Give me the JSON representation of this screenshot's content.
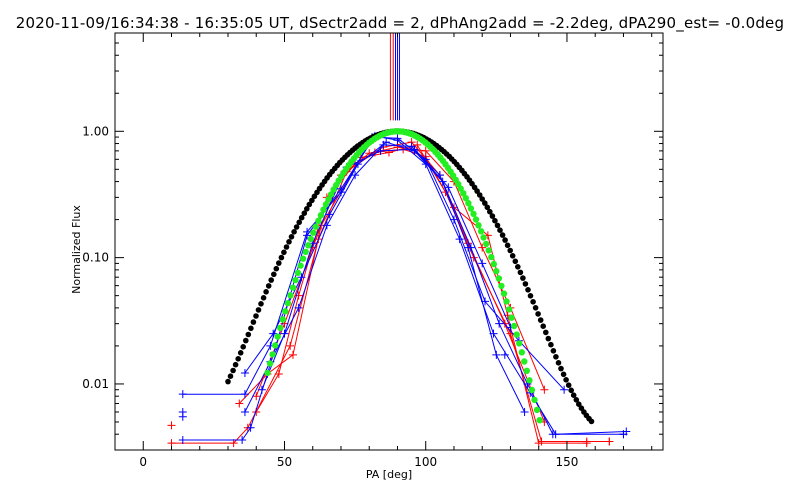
{
  "chart_data": {
    "type": "line",
    "title": "2020-11-09/16:34:38 - 16:35:05 UT, dSectr2add = 2, dPhAng2add = -2.2deg, dPA290_est= -0.0deg",
    "xlabel": "PA [deg]",
    "ylabel": "Normalized Flux",
    "xlim": [
      -10,
      184
    ],
    "ylim_log": [
      0.003,
      6.0
    ],
    "yscale": "log",
    "x_ticks": [
      0,
      50,
      100,
      150
    ],
    "x_tick_labels": [
      "0",
      "50",
      "100",
      "150"
    ],
    "y_ticks": [
      0.01,
      0.1,
      1.0
    ],
    "y_tick_labels": [
      "0.01",
      "0.10",
      "1.00"
    ],
    "vertical_markers": [
      {
        "x": 87.5,
        "color": "#ff0000"
      },
      {
        "x": 88.5,
        "color": "#ff0000"
      },
      {
        "x": 89.3,
        "color": "#0000ff"
      },
      {
        "x": 90.0,
        "color": "#0000ff"
      },
      {
        "x": 90.7,
        "color": "#0000ff"
      }
    ],
    "series": [
      {
        "name": "red-1",
        "color": "#ff0000",
        "marker": "+",
        "points": [
          [
            10,
            0.0034
          ],
          [
            32,
            0.0034
          ],
          [
            37,
            0.0045
          ],
          [
            52,
            0.02
          ],
          [
            62,
            0.14
          ],
          [
            72,
            0.48
          ],
          [
            82,
            0.68
          ],
          [
            92,
            0.72
          ],
          [
            100,
            0.63
          ],
          [
            110,
            0.25
          ],
          [
            122,
            0.15
          ],
          [
            129,
            0.035
          ],
          [
            140,
            0.0034
          ],
          [
            157,
            0.0034
          ]
        ]
      },
      {
        "name": "red-2",
        "color": "#ff0000",
        "marker": "+",
        "points": [
          [
            34,
            0.007
          ],
          [
            44,
            0.012
          ],
          [
            53,
            0.017
          ],
          [
            63,
            0.18
          ],
          [
            77,
            0.62
          ],
          [
            87,
            0.68
          ],
          [
            97,
            0.78
          ],
          [
            107,
            0.33
          ],
          [
            117,
            0.1
          ],
          [
            130,
            0.025
          ],
          [
            141,
            0.0035
          ],
          [
            165,
            0.0035
          ]
        ]
      },
      {
        "name": "red-3",
        "color": "#ff0000",
        "marker": "+",
        "points": [
          [
            40,
            0.006
          ],
          [
            48,
            0.012
          ],
          [
            55,
            0.05
          ],
          [
            65,
            0.3
          ],
          [
            75,
            0.55
          ],
          [
            85,
            0.75
          ],
          [
            95,
            0.82
          ],
          [
            105,
            0.45
          ],
          [
            115,
            0.13
          ],
          [
            128,
            0.03
          ],
          [
            142,
            0.005
          ]
        ]
      },
      {
        "name": "red-4",
        "color": "#ff0000",
        "marker": "+",
        "points": [
          [
            40,
            0.008
          ],
          [
            50,
            0.03
          ],
          [
            60,
            0.12
          ],
          [
            70,
            0.45
          ],
          [
            80,
            0.67
          ],
          [
            90,
            0.75
          ],
          [
            100,
            0.7
          ],
          [
            110,
            0.4
          ],
          [
            120,
            0.12
          ],
          [
            130,
            0.04
          ],
          [
            142,
            0.009
          ]
        ]
      },
      {
        "name": "blue-1",
        "color": "#0000ff",
        "marker": "+",
        "points": [
          [
            14,
            0.0083
          ],
          [
            36,
            0.0083
          ],
          [
            45,
            0.02
          ],
          [
            58,
            0.16
          ],
          [
            70,
            0.33
          ],
          [
            81,
            0.9
          ],
          [
            90,
            0.88
          ],
          [
            100,
            0.6
          ],
          [
            110,
            0.2
          ],
          [
            121,
            0.045
          ],
          [
            133,
            0.022
          ],
          [
            149,
            0.009
          ]
        ]
      },
      {
        "name": "blue-2",
        "color": "#0000ff",
        "marker": "+",
        "points": [
          [
            14,
            0.0036
          ],
          [
            35,
            0.0036
          ],
          [
            38,
            0.0045
          ],
          [
            47,
            0.02
          ],
          [
            58,
            0.15
          ],
          [
            70,
            0.35
          ],
          [
            82,
            0.92
          ],
          [
            90,
            0.85
          ],
          [
            100,
            0.55
          ],
          [
            112,
            0.14
          ],
          [
            124,
            0.025
          ],
          [
            137,
            0.0085
          ],
          [
            146,
            0.004
          ],
          [
            171,
            0.0042
          ]
        ]
      },
      {
        "name": "blue-3",
        "color": "#0000ff",
        "marker": "+",
        "points": [
          [
            36,
            0.0122
          ],
          [
            46,
            0.025
          ],
          [
            56,
            0.07
          ],
          [
            66,
            0.22
          ],
          [
            76,
            0.55
          ],
          [
            86,
            0.82
          ],
          [
            96,
            0.7
          ],
          [
            106,
            0.4
          ],
          [
            116,
            0.12
          ],
          [
            126,
            0.03
          ],
          [
            136,
            0.01
          ],
          [
            145,
            0.004
          ],
          [
            170,
            0.004
          ]
        ]
      },
      {
        "name": "blue-4",
        "color": "#0000ff",
        "marker": "+",
        "points": [
          [
            36,
            0.006
          ],
          [
            45,
            0.015
          ],
          [
            55,
            0.04
          ],
          [
            65,
            0.18
          ],
          [
            75,
            0.45
          ],
          [
            85,
            0.78
          ],
          [
            95,
            0.76
          ],
          [
            105,
            0.45
          ],
          [
            115,
            0.12
          ],
          [
            125,
            0.017
          ],
          [
            135,
            0.006
          ]
        ]
      },
      {
        "name": "blue-5",
        "color": "#0000ff",
        "marker": "+",
        "points": [
          [
            42,
            0.009
          ],
          [
            50,
            0.025
          ],
          [
            60,
            0.13
          ],
          [
            72,
            0.52
          ],
          [
            84,
            0.7
          ],
          [
            96,
            0.72
          ],
          [
            108,
            0.36
          ],
          [
            120,
            0.09
          ],
          [
            130,
            0.028
          ]
        ]
      }
    ],
    "stray_markers": [
      {
        "color": "#ff0000",
        "points": [
          [
            10,
            0.0047
          ],
          [
            157,
            0.0035
          ],
          [
            165,
            0.0035
          ]
        ]
      },
      {
        "color": "#0000ff",
        "points": [
          [
            14,
            0.0055
          ],
          [
            14,
            0.006
          ],
          [
            128,
            0.017
          ],
          [
            170,
            0.004
          ]
        ]
      }
    ],
    "fits": [
      {
        "name": "black-fit",
        "color": "#000000",
        "center": 90,
        "sigma": 19.0,
        "floor": 0.0036,
        "x_range": [
          30,
          159
        ]
      },
      {
        "name": "green-fit",
        "color": "#22ee22",
        "center": 90,
        "sigma": 15.5,
        "floor": 0,
        "x_range": [
          44,
          141
        ]
      }
    ]
  }
}
